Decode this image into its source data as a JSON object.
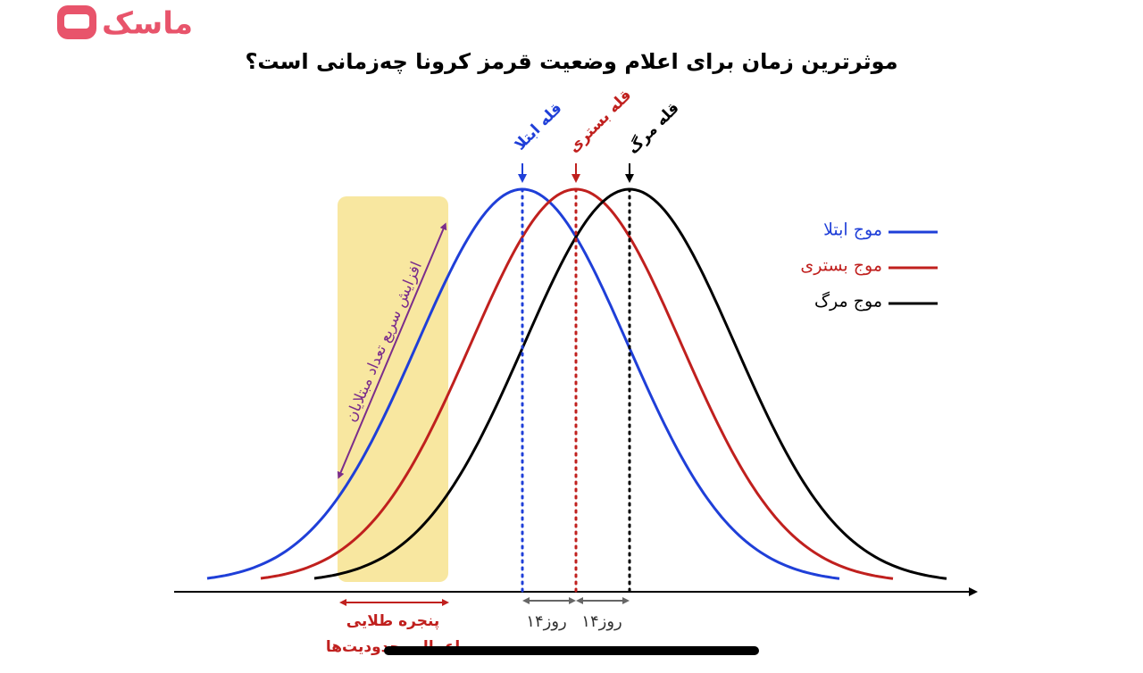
{
  "logo": "ماسک",
  "title": "موثرترین زمان برای اعلام وضعیت قرمز کرونا چه‌زمانی است؟",
  "peaks": {
    "infection": "قله ابتلا",
    "hospital": "قله بستری",
    "death": "قله مرگ"
  },
  "legend": {
    "infection": "موج ابتلا",
    "hospital": "موج بستری",
    "death": "موج مرگ"
  },
  "rise_label": "افزایش سریع تعداد مبتلایان",
  "golden_window": {
    "line1": "پنجره طلایی",
    "line2": "اعمال محدودیت‌ها"
  },
  "intervals": [
    "۱۴روز",
    "۱۴روز"
  ]
}
